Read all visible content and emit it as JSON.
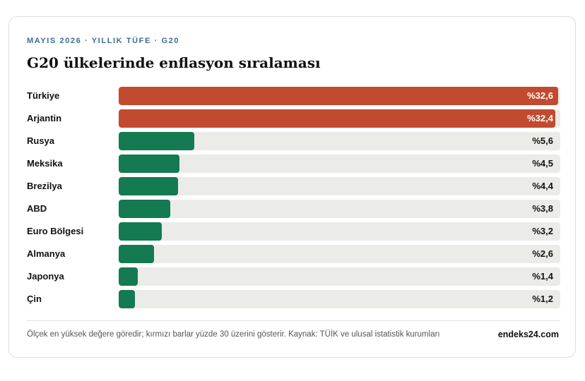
{
  "header": {
    "eyebrow": "MAYIS 2026 · YILLIK TÜFE · G20",
    "title": "G20 ülkelerinde enflasyon sıralaması"
  },
  "footer": {
    "note": "Ölçek en yüksek değere göredir; kırmızı barlar yüzde 30 üzerini gösterir. Kaynak: TÜİK ve ulusal istatistik kurumları",
    "brand": "endeks24.com"
  },
  "colors": {
    "high": "#c24a30",
    "normal": "#137a51",
    "track": "#ebebe7",
    "eyebrow": "#3d6e93"
  },
  "chart_data": {
    "type": "bar",
    "orientation": "horizontal",
    "title": "G20 ülkelerinde enflasyon sıralaması",
    "categories": [
      "Türkiye",
      "Arjantin",
      "Rusya",
      "Meksika",
      "Brezilya",
      "ABD",
      "Euro Bölgesi",
      "Almanya",
      "Japonya",
      "Çin"
    ],
    "values": [
      32.6,
      32.4,
      5.6,
      4.5,
      4.4,
      3.8,
      3.2,
      2.6,
      1.4,
      1.2
    ],
    "labels": [
      "%32,6",
      "%32,4",
      "%5,6",
      "%4,5",
      "%4,4",
      "%3,8",
      "%3,2",
      "%2,6",
      "%1,4",
      "%1,2"
    ],
    "max": 32.6,
    "threshold": 30
  }
}
